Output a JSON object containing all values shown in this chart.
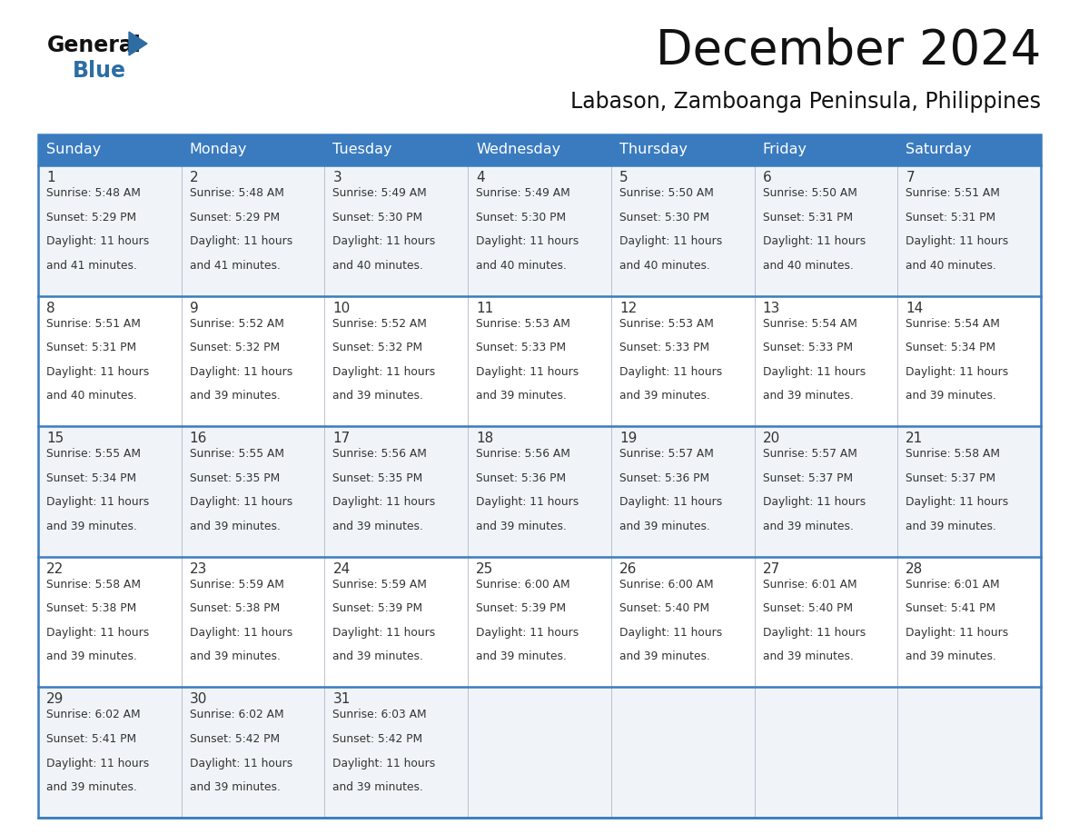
{
  "title": "December 2024",
  "subtitle": "Labason, Zamboanga Peninsula, Philippines",
  "header_color": "#3a7bbf",
  "header_text_color": "#ffffff",
  "cell_bg_even": "#f0f4f8",
  "cell_bg_odd": "#ffffff",
  "border_color": "#3a7bbf",
  "days_of_week": [
    "Sunday",
    "Monday",
    "Tuesday",
    "Wednesday",
    "Thursday",
    "Friday",
    "Saturday"
  ],
  "calendar_data": [
    [
      {
        "day": 1,
        "sunrise": "5:48 AM",
        "sunset": "5:29 PM",
        "daylight_hours": 11,
        "daylight_min_text": "41 minutes."
      },
      {
        "day": 2,
        "sunrise": "5:48 AM",
        "sunset": "5:29 PM",
        "daylight_hours": 11,
        "daylight_min_text": "41 minutes."
      },
      {
        "day": 3,
        "sunrise": "5:49 AM",
        "sunset": "5:30 PM",
        "daylight_hours": 11,
        "daylight_min_text": "40 minutes."
      },
      {
        "day": 4,
        "sunrise": "5:49 AM",
        "sunset": "5:30 PM",
        "daylight_hours": 11,
        "daylight_min_text": "40 minutes."
      },
      {
        "day": 5,
        "sunrise": "5:50 AM",
        "sunset": "5:30 PM",
        "daylight_hours": 11,
        "daylight_min_text": "40 minutes."
      },
      {
        "day": 6,
        "sunrise": "5:50 AM",
        "sunset": "5:31 PM",
        "daylight_hours": 11,
        "daylight_min_text": "40 minutes."
      },
      {
        "day": 7,
        "sunrise": "5:51 AM",
        "sunset": "5:31 PM",
        "daylight_hours": 11,
        "daylight_min_text": "40 minutes."
      }
    ],
    [
      {
        "day": 8,
        "sunrise": "5:51 AM",
        "sunset": "5:31 PM",
        "daylight_hours": 11,
        "daylight_min_text": "40 minutes."
      },
      {
        "day": 9,
        "sunrise": "5:52 AM",
        "sunset": "5:32 PM",
        "daylight_hours": 11,
        "daylight_min_text": "39 minutes."
      },
      {
        "day": 10,
        "sunrise": "5:52 AM",
        "sunset": "5:32 PM",
        "daylight_hours": 11,
        "daylight_min_text": "39 minutes."
      },
      {
        "day": 11,
        "sunrise": "5:53 AM",
        "sunset": "5:33 PM",
        "daylight_hours": 11,
        "daylight_min_text": "39 minutes."
      },
      {
        "day": 12,
        "sunrise": "5:53 AM",
        "sunset": "5:33 PM",
        "daylight_hours": 11,
        "daylight_min_text": "39 minutes."
      },
      {
        "day": 13,
        "sunrise": "5:54 AM",
        "sunset": "5:33 PM",
        "daylight_hours": 11,
        "daylight_min_text": "39 minutes."
      },
      {
        "day": 14,
        "sunrise": "5:54 AM",
        "sunset": "5:34 PM",
        "daylight_hours": 11,
        "daylight_min_text": "39 minutes."
      }
    ],
    [
      {
        "day": 15,
        "sunrise": "5:55 AM",
        "sunset": "5:34 PM",
        "daylight_hours": 11,
        "daylight_min_text": "39 minutes."
      },
      {
        "day": 16,
        "sunrise": "5:55 AM",
        "sunset": "5:35 PM",
        "daylight_hours": 11,
        "daylight_min_text": "39 minutes."
      },
      {
        "day": 17,
        "sunrise": "5:56 AM",
        "sunset": "5:35 PM",
        "daylight_hours": 11,
        "daylight_min_text": "39 minutes."
      },
      {
        "day": 18,
        "sunrise": "5:56 AM",
        "sunset": "5:36 PM",
        "daylight_hours": 11,
        "daylight_min_text": "39 minutes."
      },
      {
        "day": 19,
        "sunrise": "5:57 AM",
        "sunset": "5:36 PM",
        "daylight_hours": 11,
        "daylight_min_text": "39 minutes."
      },
      {
        "day": 20,
        "sunrise": "5:57 AM",
        "sunset": "5:37 PM",
        "daylight_hours": 11,
        "daylight_min_text": "39 minutes."
      },
      {
        "day": 21,
        "sunrise": "5:58 AM",
        "sunset": "5:37 PM",
        "daylight_hours": 11,
        "daylight_min_text": "39 minutes."
      }
    ],
    [
      {
        "day": 22,
        "sunrise": "5:58 AM",
        "sunset": "5:38 PM",
        "daylight_hours": 11,
        "daylight_min_text": "39 minutes."
      },
      {
        "day": 23,
        "sunrise": "5:59 AM",
        "sunset": "5:38 PM",
        "daylight_hours": 11,
        "daylight_min_text": "39 minutes."
      },
      {
        "day": 24,
        "sunrise": "5:59 AM",
        "sunset": "5:39 PM",
        "daylight_hours": 11,
        "daylight_min_text": "39 minutes."
      },
      {
        "day": 25,
        "sunrise": "6:00 AM",
        "sunset": "5:39 PM",
        "daylight_hours": 11,
        "daylight_min_text": "39 minutes."
      },
      {
        "day": 26,
        "sunrise": "6:00 AM",
        "sunset": "5:40 PM",
        "daylight_hours": 11,
        "daylight_min_text": "39 minutes."
      },
      {
        "day": 27,
        "sunrise": "6:01 AM",
        "sunset": "5:40 PM",
        "daylight_hours": 11,
        "daylight_min_text": "39 minutes."
      },
      {
        "day": 28,
        "sunrise": "6:01 AM",
        "sunset": "5:41 PM",
        "daylight_hours": 11,
        "daylight_min_text": "39 minutes."
      }
    ],
    [
      {
        "day": 29,
        "sunrise": "6:02 AM",
        "sunset": "5:41 PM",
        "daylight_hours": 11,
        "daylight_min_text": "39 minutes."
      },
      {
        "day": 30,
        "sunrise": "6:02 AM",
        "sunset": "5:42 PM",
        "daylight_hours": 11,
        "daylight_min_text": "39 minutes."
      },
      {
        "day": 31,
        "sunrise": "6:03 AM",
        "sunset": "5:42 PM",
        "daylight_hours": 11,
        "daylight_min_text": "39 minutes."
      },
      null,
      null,
      null,
      null
    ]
  ],
  "text_color": "#333333",
  "logo_black_color": "#111111",
  "logo_blue_color": "#2e6da4",
  "title_fontsize": 38,
  "subtitle_fontsize": 17,
  "header_fontsize": 11.5,
  "day_num_fontsize": 11,
  "cell_text_fontsize": 8.8
}
